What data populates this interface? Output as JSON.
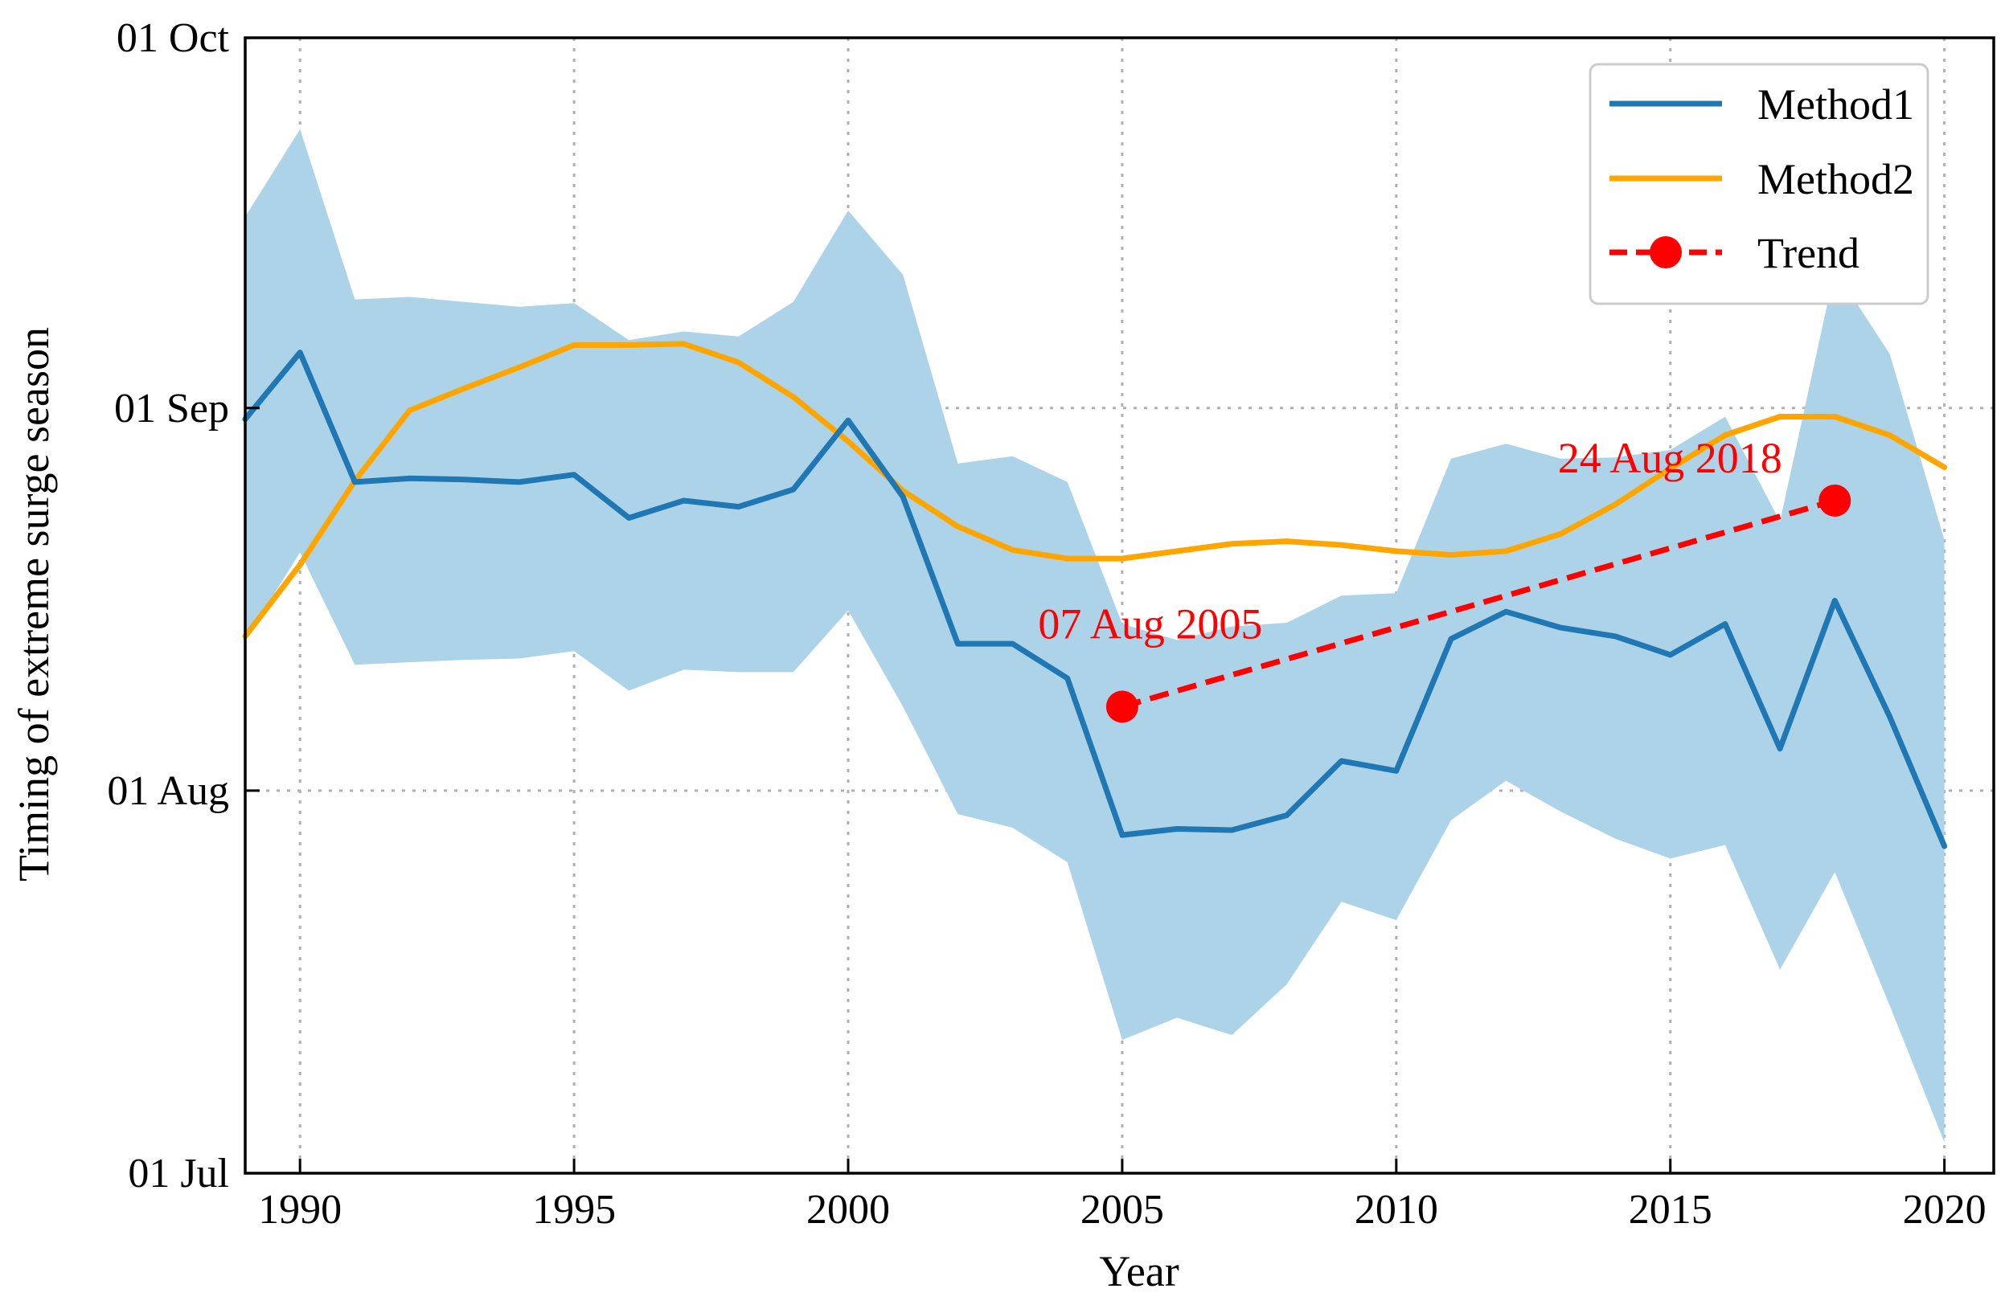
{
  "chart_data": {
    "type": "line",
    "xlabel": "Year",
    "ylabel": "Timing of extreme surge season",
    "xlim": [
      1989,
      2020.9
    ],
    "ylim": [
      182,
      274
    ],
    "x_ticks": [
      1990,
      1995,
      2000,
      2005,
      2010,
      2015,
      2020
    ],
    "y_ticks": [
      {
        "value": 182,
        "label": "01 Jul"
      },
      {
        "value": 213,
        "label": "01 Aug"
      },
      {
        "value": 244,
        "label": "01 Sep"
      },
      {
        "value": 274,
        "label": "01 Oct"
      }
    ],
    "grid": true,
    "legend_position": "top-right",
    "x": [
      1989,
      1990,
      1991,
      1992,
      1993,
      1994,
      1995,
      1996,
      1997,
      1998,
      1999,
      2000,
      2001,
      2002,
      2003,
      2004,
      2005,
      2006,
      2007,
      2008,
      2009,
      2010,
      2011,
      2012,
      2013,
      2014,
      2015,
      2016,
      2017,
      2018,
      2019,
      2020
    ],
    "series": [
      {
        "name": "Method1",
        "color": "#1f77b4",
        "values": [
          243.1,
          248.5,
          238.0,
          238.3,
          238.2,
          238.0,
          238.6,
          235.1,
          236.5,
          236.0,
          237.4,
          243.0,
          236.8,
          224.9,
          224.9,
          222.1,
          209.4,
          209.9,
          209.8,
          211.0,
          215.4,
          214.6,
          225.3,
          227.5,
          226.2,
          225.5,
          224.0,
          226.5,
          216.4,
          228.4,
          219.0,
          208.5
        ]
      },
      {
        "name": "Method2",
        "color": "#ffa500",
        "values": [
          225.5,
          231.3,
          238.1,
          243.8,
          245.6,
          247.3,
          249.1,
          249.1,
          249.2,
          247.7,
          244.9,
          241.3,
          237.3,
          234.4,
          232.5,
          231.8,
          231.8,
          232.4,
          233.0,
          233.2,
          232.9,
          232.4,
          232.1,
          232.4,
          233.8,
          236.2,
          239.1,
          241.8,
          243.3,
          243.3,
          241.8,
          239.2
        ]
      },
      {
        "name": "Trend",
        "color": "#ff0000",
        "style": "dashed with markers",
        "x": [
          2005,
          2018
        ],
        "values": [
          219.8,
          236.5
        ],
        "labels": [
          "07 Aug 2005",
          "24 Aug 2018"
        ]
      }
    ],
    "band": {
      "series": "Method1",
      "color": "#add3e8",
      "x": [
        1989,
        1990,
        1991,
        1992,
        1993,
        1994,
        1995,
        1996,
        1997,
        1998,
        1999,
        2000,
        2001,
        2002,
        2003,
        2004,
        2005,
        2006,
        2007,
        2008,
        2009,
        2010,
        2011,
        2012,
        2013,
        2014,
        2015,
        2016,
        2017,
        2018,
        2019,
        2020
      ],
      "upper": [
        259.5,
        266.6,
        252.8,
        253.0,
        252.6,
        252.2,
        252.5,
        249.5,
        250.2,
        249.8,
        252.6,
        260.0,
        254.8,
        239.5,
        240.1,
        238.0,
        226.5,
        225.2,
        226.3,
        226.6,
        228.8,
        229.0,
        239.9,
        241.1,
        239.9,
        240.0,
        240.6,
        243.3,
        234.8,
        255.2,
        248.4,
        233.3
      ],
      "lower": [
        225.2,
        232.3,
        223.2,
        223.4,
        223.6,
        223.7,
        224.3,
        221.1,
        222.8,
        222.6,
        222.6,
        227.6,
        219.8,
        211.1,
        210.0,
        207.2,
        192.8,
        194.6,
        193.2,
        197.3,
        204.0,
        202.5,
        210.6,
        213.8,
        211.3,
        209.1,
        207.5,
        208.6,
        198.5,
        206.4,
        195.6,
        184.5
      ]
    }
  }
}
